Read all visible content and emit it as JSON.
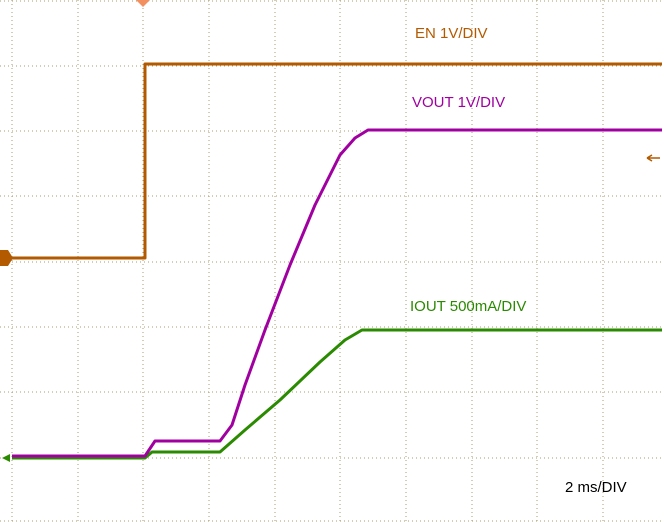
{
  "labels": {
    "en": "EN 1V/DIV",
    "vout": "VOUT 1V/DIV",
    "iout": "IOUT 500mA/DIV",
    "timebase": "2 ms/DIV"
  }
}
